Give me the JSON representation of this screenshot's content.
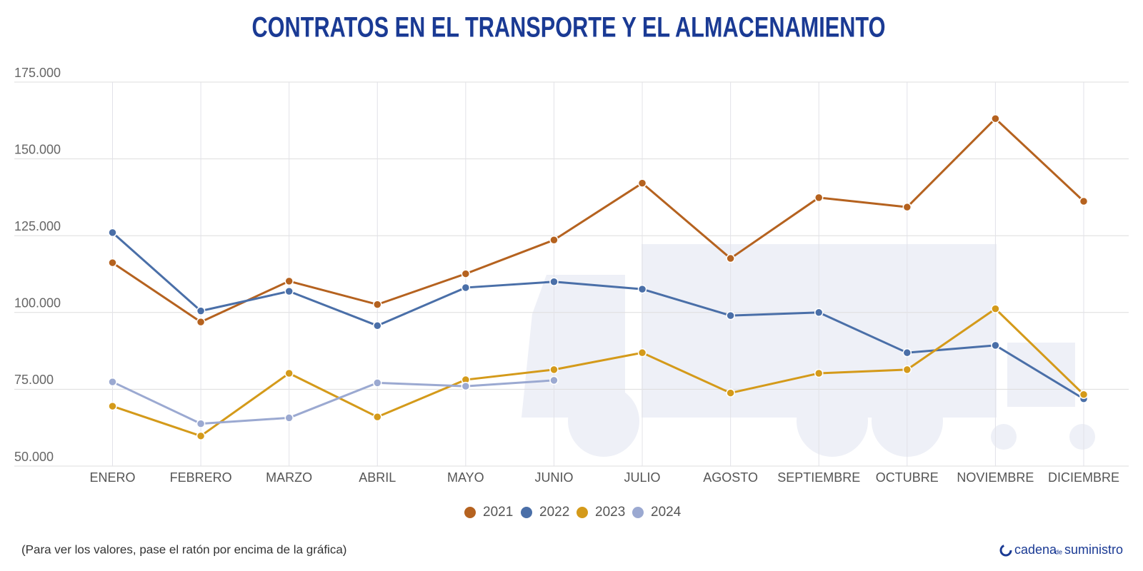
{
  "chart_data": {
    "type": "line",
    "title": "CONTRATOS EN EL TRANSPORTE Y EL ALMACENAMIENTO",
    "categories": [
      "ENERO",
      "FEBRERO",
      "MARZO",
      "ABRIL",
      "MAYO",
      "JUNIO",
      "JULIO",
      "AGOSTO",
      "SEPTIEMBRE",
      "OCTUBRE",
      "NOVIEMBRE",
      "DICIEMBRE"
    ],
    "series": [
      {
        "name": "2021",
        "color": "#b5621f",
        "values": [
          116200,
          96900,
          110200,
          102600,
          112600,
          123600,
          142100,
          117600,
          137400,
          134300,
          163100,
          136200
        ]
      },
      {
        "name": "2022",
        "color": "#4a6fa8",
        "values": [
          126000,
          100500,
          106900,
          95700,
          108100,
          110000,
          107600,
          99000,
          100000,
          86900,
          89300,
          71900
        ]
      },
      {
        "name": "2023",
        "color": "#d49a1a",
        "values": [
          69500,
          59800,
          80200,
          66000,
          78100,
          81400,
          86900,
          73800,
          80200,
          81400,
          101200,
          73300
        ]
      },
      {
        "name": "2024",
        "color": "#9ba9d1",
        "values": [
          77400,
          63800,
          65700,
          77100,
          76000,
          77900,
          null,
          null,
          null,
          null,
          null,
          null
        ]
      }
    ],
    "ylim": [
      50000,
      175000
    ],
    "yticks": [
      {
        "value": 50000,
        "label": "50.000"
      },
      {
        "value": 75000,
        "label": "75.000"
      },
      {
        "value": 100000,
        "label": "100.000"
      },
      {
        "value": 125000,
        "label": "125.000"
      },
      {
        "value": 150000,
        "label": "150.000"
      },
      {
        "value": 175000,
        "label": "175.000"
      }
    ],
    "grid": true,
    "legend": "bottom",
    "footnote": "(Para ver los valores, pase el ratón por encima de la gráfica)",
    "logo": {
      "part1": "cadena",
      "part2": "de",
      "part3": "suministro"
    }
  }
}
